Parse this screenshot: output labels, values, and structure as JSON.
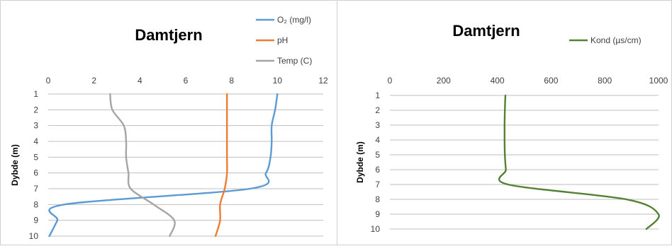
{
  "chart_data": [
    {
      "type": "line",
      "title": "Damtjern",
      "ylabel": "Dybde (m)",
      "xlabel": "",
      "xlim": [
        0,
        12
      ],
      "x_ticks": [
        "0",
        "2",
        "4",
        "6",
        "8",
        "10",
        "12"
      ],
      "y_ticks": [
        "1",
        "2",
        "3",
        "4",
        "5",
        "6",
        "7",
        "8",
        "9",
        "10"
      ],
      "ylim": [
        1,
        10
      ],
      "y_reversed": true,
      "grid": "horizontal",
      "legend_position": "top-right",
      "series": [
        {
          "name": "O₂ (mg/l)",
          "color": "#5b9bd5",
          "points": [
            [
              10,
              1
            ],
            [
              9.9,
              2
            ],
            [
              9.75,
              3
            ],
            [
              9.75,
              4
            ],
            [
              9.7,
              5
            ],
            [
              9.5,
              6
            ],
            [
              8.8,
              7
            ],
            [
              0.7,
              8
            ],
            [
              0.4,
              9
            ],
            [
              0.05,
              10
            ]
          ]
        },
        {
          "name": "pH",
          "color": "#ed7d31",
          "points": [
            [
              7.8,
              1
            ],
            [
              7.8,
              2
            ],
            [
              7.8,
              3
            ],
            [
              7.8,
              4
            ],
            [
              7.8,
              5
            ],
            [
              7.8,
              6
            ],
            [
              7.7,
              7
            ],
            [
              7.5,
              8
            ],
            [
              7.5,
              9
            ],
            [
              7.3,
              10
            ]
          ]
        },
        {
          "name": "Temp (C)",
          "color": "#a5a5a5",
          "points": [
            [
              2.7,
              1
            ],
            [
              2.8,
              2
            ],
            [
              3.3,
              3
            ],
            [
              3.4,
              4
            ],
            [
              3.4,
              5
            ],
            [
              3.5,
              6
            ],
            [
              3.6,
              7
            ],
            [
              4.6,
              8
            ],
            [
              5.5,
              9
            ],
            [
              5.3,
              10
            ]
          ]
        }
      ]
    },
    {
      "type": "line",
      "title": "Damtjern",
      "ylabel": "Dybde (m)",
      "xlabel": "",
      "xlim": [
        0,
        1000
      ],
      "x_ticks": [
        "0",
        "200",
        "400",
        "600",
        "800",
        "1000"
      ],
      "y_ticks": [
        "1",
        "2",
        "3",
        "4",
        "5",
        "6",
        "7",
        "8",
        "9",
        "10"
      ],
      "ylim": [
        1,
        10
      ],
      "y_reversed": true,
      "grid": "horizontal",
      "legend_position": "top-right",
      "series": [
        {
          "name": "Kond (µs/cm)",
          "color": "#548235",
          "points": [
            [
              430,
              1
            ],
            [
              428,
              2
            ],
            [
              427,
              3
            ],
            [
              427,
              4
            ],
            [
              428,
              5
            ],
            [
              432,
              6
            ],
            [
              440,
              7
            ],
            [
              880,
              8
            ],
            [
              1000,
              9
            ],
            [
              955,
              10
            ]
          ]
        }
      ]
    }
  ]
}
